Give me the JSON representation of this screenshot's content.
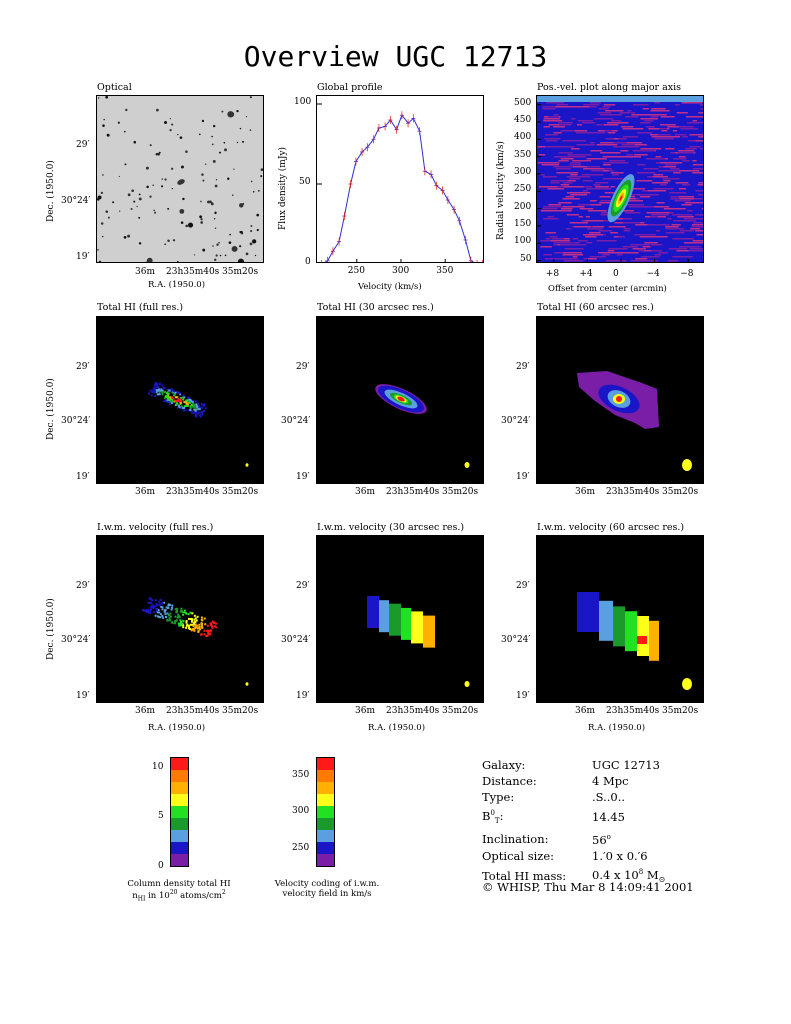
{
  "page_title": "Overview UGC 12713",
  "panels": {
    "optical": "Optical",
    "global_profile": "Global profile",
    "pv_plot": "Pos.-vel. plot along major axis",
    "hi_full": "Total HI (full res.)",
    "hi_30": "Total HI (30 arcsec res.)",
    "hi_60": "Total HI (60 arcsec res.)",
    "vel_full": "I.w.m. velocity (full res.)",
    "vel_30": "I.w.m. velocity (30 arcsec res.)",
    "vel_60": "I.w.m. velocity (60 arcsec res.)"
  },
  "axes": {
    "dec_label": "Dec. (1950.0)",
    "ra_label": "R.A. (1950.0)",
    "dec_ticks": [
      "29′",
      "30°24′",
      "19′"
    ],
    "ra_ticks": [
      "36m",
      "23h35m40s",
      "35m20s"
    ],
    "flux_label": "Flux density (mJy)",
    "velocity_label": "Velocity (km/s)",
    "radial_vel_label": "Radial velocity (km/s)",
    "offset_label": "Offset from center (arcmin)"
  },
  "chart_data": [
    {
      "type": "line",
      "title": "Global profile",
      "xlabel": "Velocity (km/s)",
      "ylabel": "Flux density (mJy)",
      "xlim": [
        205,
        395
      ],
      "ylim": [
        0,
        105
      ],
      "xticks": [
        250,
        300,
        350
      ],
      "yticks": [
        0,
        50,
        100
      ],
      "series": [
        {
          "x": [
            210,
            217,
            223,
            230,
            236,
            243,
            249,
            256,
            262,
            269,
            275,
            282,
            288,
            295,
            301,
            308,
            314,
            321,
            327,
            334,
            340,
            347,
            353,
            360,
            366,
            373,
            379,
            386,
            392
          ],
          "y": [
            0,
            2,
            8,
            14,
            30,
            50,
            64,
            70,
            73,
            78,
            85,
            86,
            90,
            84,
            93,
            88,
            91,
            83,
            58,
            56,
            49,
            46,
            40,
            34,
            27,
            15,
            2,
            0,
            0
          ]
        }
      ]
    },
    {
      "type": "scatter",
      "title": "Pos.-vel. plot along major axis",
      "xlabel": "Offset from center (arcmin)",
      "ylabel": "Radial velocity (km/s)",
      "xlim": [
        10,
        -10
      ],
      "ylim": [
        40,
        525
      ],
      "xticks": [
        8,
        4,
        0,
        -4,
        -8
      ],
      "xtick_labels": [
        "+8",
        "+4",
        "0",
        "−4",
        "−8"
      ],
      "yticks": [
        50,
        100,
        150,
        200,
        250,
        300,
        350,
        400,
        450,
        500
      ]
    }
  ],
  "colorbars": {
    "column_density": {
      "ticks": [
        "10",
        "5",
        "0"
      ],
      "caption_line1": "Column density total HI",
      "caption_line2_pre": "n",
      "caption_line2_sub": "HI",
      "caption_line2_mid": " in 10",
      "caption_line2_sup": "20",
      "caption_line2_post": " atoms/cm",
      "caption_line2_sup2": "2"
    },
    "velocity": {
      "ticks": [
        "350",
        "300",
        "250"
      ],
      "caption_line1": "Velocity coding of i.w.m.",
      "caption_line2": "velocity field in km/s"
    },
    "colors": [
      "#7a1ea8",
      "#1a16c8",
      "#5aa0e0",
      "#1a9a2a",
      "#22e022",
      "#ffff1a",
      "#ffb000",
      "#ff7a00",
      "#ff1a1a"
    ]
  },
  "galaxy_info": [
    {
      "key": "Galaxy:",
      "value": "UGC 12713"
    },
    {
      "key": "Distance:",
      "value": "4 Mpc"
    },
    {
      "key": "Type:",
      "value": ".S..0.."
    },
    {
      "key": "B",
      "key_sup": "0",
      "key_sub": "T",
      "key_post": ":",
      "value": "14.45"
    },
    {
      "key": "Inclination:",
      "value": "56",
      "value_sup": "o"
    },
    {
      "key": "Optical size:",
      "value": "1.′0 x 0.′6"
    },
    {
      "key": "Total HI mass:",
      "value": "0.4 x 10",
      "value_sup": "8",
      "value_post": " M",
      "value_sub": "⊙"
    }
  ],
  "stamp": "© WHISP, Thu Mar  8 14:09:41 2001"
}
